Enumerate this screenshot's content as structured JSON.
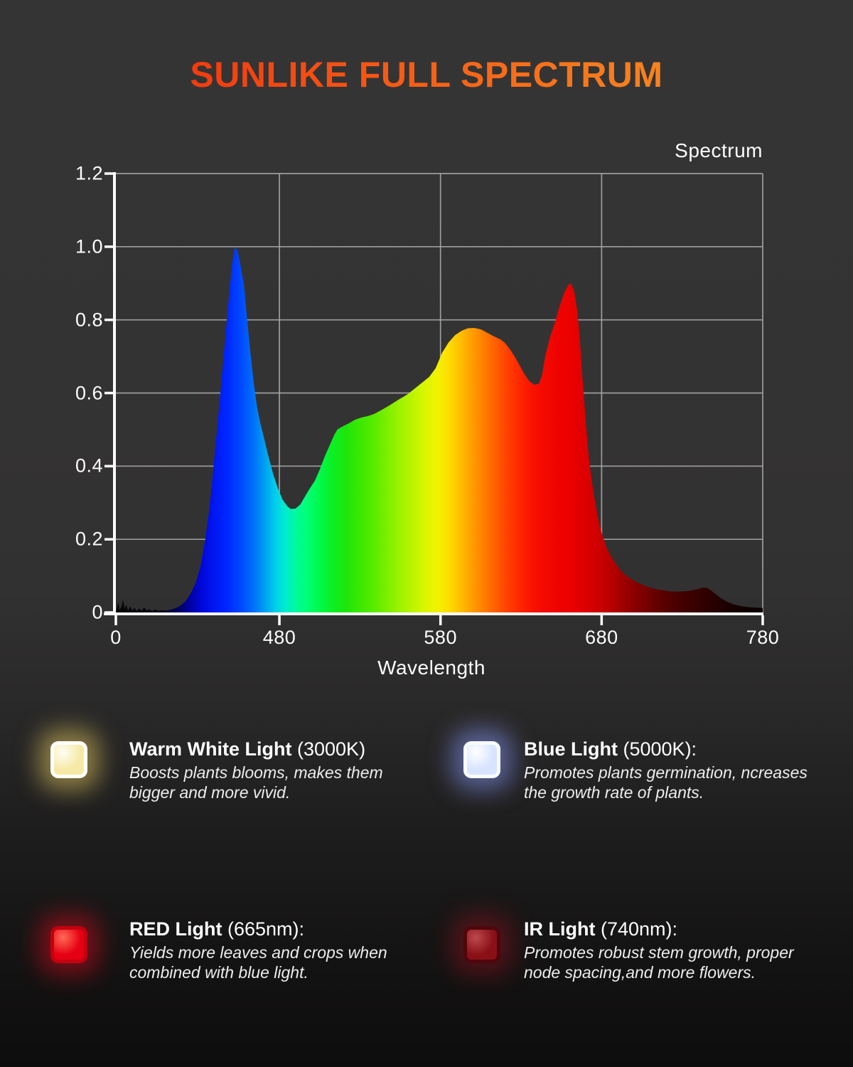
{
  "page": {
    "title": "SUNLIKE FULL SPECTRUM"
  },
  "theme": {
    "title_g1": "#f43b0e",
    "title_g2": "#f8841f",
    "bg_top": "#343434",
    "bg_bottom": "#0e0d0d",
    "text": "#ffffff",
    "grid": "#a9a9a9",
    "axis": "#ffffff"
  },
  "chart_data": {
    "type": "area",
    "title": "Spectrum",
    "xlabel": "Wavelength",
    "ylabel": "",
    "x_unit": "nm",
    "ylim": [
      0,
      1.2
    ],
    "x_range_nm": [
      378.5,
      780
    ],
    "grid": true,
    "y_ticks": [
      {
        "label": "1.2",
        "value": 1.2
      },
      {
        "label": "1.0",
        "value": 1.0
      },
      {
        "label": "0.8",
        "value": 0.8
      },
      {
        "label": "0.6",
        "value": 0.6
      },
      {
        "label": "0.4",
        "value": 0.4
      },
      {
        "label": "0.2",
        "value": 0.2
      },
      {
        "label": "0",
        "value": 0
      }
    ],
    "x_ticks": [
      {
        "label": "0",
        "nm": 378.5
      },
      {
        "label": "480",
        "nm": 480
      },
      {
        "label": "580",
        "nm": 580
      },
      {
        "label": "680",
        "nm": 680
      },
      {
        "label": "780",
        "nm": 780
      }
    ],
    "points": [
      [
        376,
        0
      ],
      [
        377.5,
        0.01
      ],
      [
        378.5,
        0.004
      ],
      [
        380,
        0.028
      ],
      [
        380.8,
        0.007
      ],
      [
        382,
        0.016
      ],
      [
        383,
        0.035
      ],
      [
        384,
        0.009
      ],
      [
        385,
        0.022
      ],
      [
        386,
        0.005
      ],
      [
        387.5,
        0.017
      ],
      [
        388.5,
        0.005
      ],
      [
        390,
        0.012
      ],
      [
        391.5,
        0.004
      ],
      [
        393,
        0.011
      ],
      [
        394.5,
        0.004
      ],
      [
        396,
        0.014
      ],
      [
        397.5,
        0.005
      ],
      [
        399,
        0.009
      ],
      [
        401,
        0.004
      ],
      [
        403,
        0.008
      ],
      [
        405,
        0.004
      ],
      [
        407,
        0.006
      ],
      [
        410,
        0.005
      ],
      [
        413,
        0.008
      ],
      [
        416,
        0.012
      ],
      [
        419,
        0.02
      ],
      [
        422,
        0.032
      ],
      [
        425,
        0.052
      ],
      [
        428,
        0.08
      ],
      [
        431,
        0.125
      ],
      [
        434,
        0.2
      ],
      [
        437,
        0.3
      ],
      [
        440,
        0.44
      ],
      [
        443,
        0.58
      ],
      [
        445,
        0.68
      ],
      [
        447,
        0.78
      ],
      [
        449,
        0.88
      ],
      [
        451,
        0.965
      ],
      [
        452.5,
        1.0
      ],
      [
        454,
        0.99
      ],
      [
        456,
        0.945
      ],
      [
        458,
        0.895
      ],
      [
        460,
        0.8
      ],
      [
        462,
        0.71
      ],
      [
        464,
        0.63
      ],
      [
        466,
        0.565
      ],
      [
        468,
        0.52
      ],
      [
        470,
        0.485
      ],
      [
        473,
        0.43
      ],
      [
        476,
        0.38
      ],
      [
        479,
        0.34
      ],
      [
        482,
        0.308
      ],
      [
        485,
        0.29
      ],
      [
        487,
        0.283
      ],
      [
        490,
        0.284
      ],
      [
        493,
        0.295
      ],
      [
        496,
        0.318
      ],
      [
        499,
        0.34
      ],
      [
        502,
        0.36
      ],
      [
        505,
        0.39
      ],
      [
        508,
        0.425
      ],
      [
        511,
        0.455
      ],
      [
        514,
        0.485
      ],
      [
        516,
        0.5
      ],
      [
        519,
        0.508
      ],
      [
        523,
        0.517
      ],
      [
        527,
        0.527
      ],
      [
        531,
        0.533
      ],
      [
        535,
        0.537
      ],
      [
        539,
        0.543
      ],
      [
        544,
        0.555
      ],
      [
        549,
        0.568
      ],
      [
        554,
        0.582
      ],
      [
        559,
        0.595
      ],
      [
        564,
        0.612
      ],
      [
        569,
        0.63
      ],
      [
        573,
        0.644
      ],
      [
        577,
        0.668
      ],
      [
        581,
        0.71
      ],
      [
        585,
        0.738
      ],
      [
        589,
        0.758
      ],
      [
        593,
        0.77
      ],
      [
        597,
        0.777
      ],
      [
        601,
        0.778
      ],
      [
        605,
        0.774
      ],
      [
        609,
        0.765
      ],
      [
        613,
        0.755
      ],
      [
        617,
        0.747
      ],
      [
        620,
        0.737
      ],
      [
        623,
        0.72
      ],
      [
        626,
        0.7
      ],
      [
        629,
        0.676
      ],
      [
        632,
        0.652
      ],
      [
        635,
        0.633
      ],
      [
        638,
        0.623
      ],
      [
        641,
        0.625
      ],
      [
        643,
        0.648
      ],
      [
        645,
        0.7
      ],
      [
        648,
        0.753
      ],
      [
        651,
        0.792
      ],
      [
        654,
        0.838
      ],
      [
        657,
        0.876
      ],
      [
        659.5,
        0.896
      ],
      [
        661,
        0.899
      ],
      [
        663,
        0.878
      ],
      [
        665,
        0.82
      ],
      [
        666.5,
        0.745
      ],
      [
        668,
        0.645
      ],
      [
        670,
        0.53
      ],
      [
        672,
        0.425
      ],
      [
        674,
        0.355
      ],
      [
        676,
        0.3
      ],
      [
        678,
        0.255
      ],
      [
        680,
        0.218
      ],
      [
        683,
        0.178
      ],
      [
        686,
        0.152
      ],
      [
        690,
        0.125
      ],
      [
        694,
        0.105
      ],
      [
        699,
        0.089
      ],
      [
        704,
        0.078
      ],
      [
        710,
        0.068
      ],
      [
        716,
        0.062
      ],
      [
        722,
        0.058
      ],
      [
        728,
        0.057
      ],
      [
        734,
        0.059
      ],
      [
        739,
        0.063
      ],
      [
        743,
        0.068
      ],
      [
        745.5,
        0.067
      ],
      [
        748,
        0.06
      ],
      [
        751,
        0.049
      ],
      [
        754,
        0.039
      ],
      [
        758,
        0.029
      ],
      [
        762,
        0.022
      ],
      [
        767,
        0.017
      ],
      [
        772,
        0.014
      ],
      [
        776,
        0.013
      ],
      [
        780,
        0.012
      ]
    ],
    "spectrum_gradient": [
      [
        376,
        "#060606"
      ],
      [
        400,
        "#050510"
      ],
      [
        408,
        "#00001c"
      ],
      [
        416,
        "#000055"
      ],
      [
        424,
        "#0000a0"
      ],
      [
        432,
        "#0008dc"
      ],
      [
        440,
        "#0018f4"
      ],
      [
        448,
        "#0028ff"
      ],
      [
        456,
        "#0048ff"
      ],
      [
        464,
        "#0070fa"
      ],
      [
        471,
        "#00a0f0"
      ],
      [
        478,
        "#00d2e8"
      ],
      [
        484,
        "#00eccc"
      ],
      [
        490,
        "#00fa9e"
      ],
      [
        497,
        "#00ff78"
      ],
      [
        504,
        "#00fa50"
      ],
      [
        512,
        "#0af028"
      ],
      [
        521,
        "#1ce60a"
      ],
      [
        530,
        "#3ce800"
      ],
      [
        540,
        "#5eec00"
      ],
      [
        550,
        "#8af000"
      ],
      [
        560,
        "#b2f400"
      ],
      [
        570,
        "#d8f600"
      ],
      [
        578,
        "#f2f200"
      ],
      [
        585,
        "#fede00"
      ],
      [
        592,
        "#ffc000"
      ],
      [
        599,
        "#ffa000"
      ],
      [
        606,
        "#ff8200"
      ],
      [
        613,
        "#ff6400"
      ],
      [
        620,
        "#ff4600"
      ],
      [
        628,
        "#ff2a00"
      ],
      [
        636,
        "#fa1400"
      ],
      [
        645,
        "#f40800"
      ],
      [
        655,
        "#ee0200"
      ],
      [
        665,
        "#e60000"
      ],
      [
        674,
        "#d60000"
      ],
      [
        683,
        "#c00000"
      ],
      [
        692,
        "#a40000"
      ],
      [
        701,
        "#880000"
      ],
      [
        711,
        "#6c0000"
      ],
      [
        721,
        "#540000"
      ],
      [
        731,
        "#420000"
      ],
      [
        741,
        "#340000"
      ],
      [
        751,
        "#260000"
      ],
      [
        761,
        "#180000"
      ],
      [
        770,
        "#100000"
      ],
      [
        780,
        "#0a0000"
      ]
    ]
  },
  "features": [
    {
      "name": "Warm White Light",
      "suffix": "(3000K)",
      "desc_lines": [
        "Boosts plants blooms, makes them",
        "bigger and more vivid."
      ],
      "chip": {
        "rim": "#ffffff",
        "core": "#f6e9a6",
        "hi": "#fffef4",
        "glow": "rgba(224,198,94,0.55)"
      }
    },
    {
      "name": "Blue Light",
      "suffix": "(5000K):",
      "desc_lines": [
        "Promotes plants germination, ncreases",
        "the growth rate of plants."
      ],
      "chip": {
        "rim": "#f8fbff",
        "core": "#d8e4ff",
        "hi": "#ffffff",
        "glow": "rgba(140,158,255,0.5)"
      }
    },
    {
      "name": "RED Light",
      "suffix": "(665nm):",
      "desc_lines": [
        "Yields more leaves and crops when",
        "combined with blue light."
      ],
      "chip": {
        "rim": "#c4000f",
        "core": "#e60013",
        "hi": "#ff6a55",
        "glow": "rgba(255,10,30,0.42)"
      }
    },
    {
      "name": "IR Light",
      "suffix": "(740nm):",
      "desc_lines": [
        "Promotes robust stem growth, proper",
        "node spacing,and more flowers."
      ],
      "chip": {
        "rim": "#4e070c",
        "core": "#8a1016",
        "hi": "#bb4a4e",
        "glow": "rgba(150,18,30,0.45)"
      }
    }
  ]
}
